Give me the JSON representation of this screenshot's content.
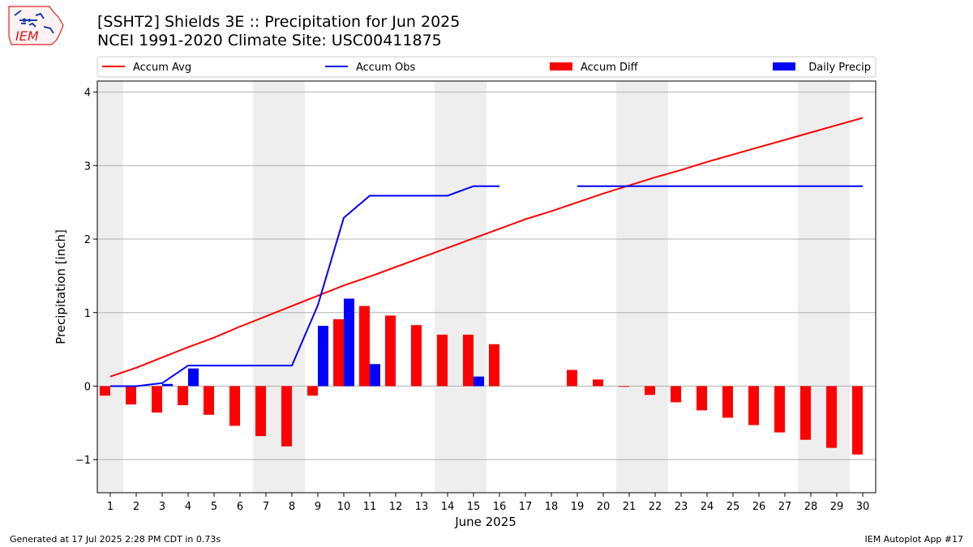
{
  "logo": {
    "text": "IEM"
  },
  "title": {
    "line1": "[SSHT2] Shields 3E :: Precipitation for Jun 2025",
    "line2": "NCEI 1991-2020 Climate Site: USC00411875"
  },
  "footer": {
    "left": "Generated at 17 Jul 2025 2:28 PM CDT in 0.73s",
    "right": "IEM Autoplot App #17"
  },
  "chart_data": {
    "type": "bar",
    "xlabel": "June 2025",
    "ylabel": "Precipitation [inch]",
    "ylim": [
      -1.45,
      4.15
    ],
    "xlim": [
      0.5,
      30.5
    ],
    "yticks": [
      -1,
      0,
      1,
      2,
      3,
      4
    ],
    "ytick_labels": [
      "−1",
      "0",
      "1",
      "2",
      "3",
      "4"
    ],
    "x": [
      1,
      2,
      3,
      4,
      5,
      6,
      7,
      8,
      9,
      10,
      11,
      12,
      13,
      14,
      15,
      16,
      17,
      18,
      19,
      20,
      21,
      22,
      23,
      24,
      25,
      26,
      27,
      28,
      29,
      30
    ],
    "xtick_labels": [
      "1",
      "2",
      "3",
      "4",
      "5",
      "6",
      "7",
      "8",
      "9",
      "10",
      "11",
      "12",
      "13",
      "14",
      "15",
      "16",
      "17",
      "18",
      "19",
      "20",
      "21",
      "22",
      "23",
      "24",
      "25",
      "26",
      "27",
      "28",
      "29",
      "30"
    ],
    "weekend_bands": [
      [
        0.5,
        1.5
      ],
      [
        6.5,
        8.5
      ],
      [
        13.5,
        15.5
      ],
      [
        20.5,
        22.5
      ],
      [
        27.5,
        29.5
      ]
    ],
    "grid": "horizontal",
    "legend_position": "top",
    "series": [
      {
        "name": "Accum Avg",
        "kind": "line",
        "color": "#ff0000",
        "values": [
          0.13,
          0.25,
          0.39,
          0.53,
          0.66,
          0.81,
          0.95,
          1.09,
          1.23,
          1.37,
          1.49,
          1.62,
          1.75,
          1.88,
          2.01,
          2.14,
          2.27,
          2.38,
          2.5,
          2.62,
          2.73,
          2.84,
          2.94,
          3.05,
          3.15,
          3.25,
          3.35,
          3.45,
          3.55,
          3.65
        ]
      },
      {
        "name": "Accum Obs",
        "kind": "line",
        "color": "#0000ff",
        "values": [
          0.0,
          0.0,
          0.04,
          0.28,
          0.28,
          0.28,
          0.28,
          0.28,
          1.1,
          2.29,
          2.59,
          2.59,
          2.59,
          2.59,
          2.72,
          2.72,
          null,
          null,
          2.72,
          2.72,
          2.72,
          2.72,
          2.72,
          2.72,
          2.72,
          2.72,
          2.72,
          2.72,
          2.72,
          2.72
        ]
      },
      {
        "name": "Accum Diff",
        "kind": "bar",
        "color": "#ff0000",
        "values": [
          -0.13,
          -0.25,
          -0.36,
          -0.26,
          -0.39,
          -0.54,
          -0.68,
          -0.82,
          -0.13,
          0.91,
          1.09,
          0.96,
          0.83,
          0.7,
          0.7,
          0.57,
          null,
          null,
          0.22,
          0.09,
          -0.01,
          -0.12,
          -0.22,
          -0.33,
          -0.43,
          -0.53,
          -0.63,
          -0.73,
          -0.84,
          -0.93
        ]
      },
      {
        "name": "Daily Precip",
        "kind": "bar",
        "color": "#0000ff",
        "values": [
          0,
          0,
          0.03,
          0.24,
          0,
          0,
          0,
          0,
          0.82,
          1.19,
          0.3,
          0,
          0,
          0,
          0.13,
          0,
          null,
          null,
          0,
          0,
          0,
          0,
          0,
          0,
          0,
          0,
          0,
          0,
          0,
          0
        ]
      }
    ]
  }
}
